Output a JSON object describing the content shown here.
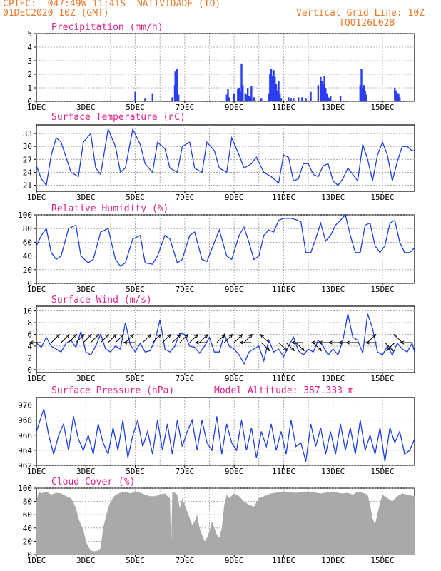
{
  "header": {
    "line1_left": "CPTEC:  047:49W-11:41S  NATIVIDADE (TO)",
    "line2_left": "01DEC2020 10Z (GMT)",
    "line1_right": "Vertical Grid Line: 10Z",
    "line2_right": "TQ0126L028",
    "model_altitude": "Model Altitude: 387.333 m"
  },
  "colors": {
    "header": "#e8782a",
    "panel_title": "#e0218a",
    "line": "#1f3fe0",
    "bar": "#2b3df2",
    "cloud": "#a9a9a9",
    "grid": "#9a9a9a",
    "wind_arrow": "#000000"
  },
  "chart_data": [
    {
      "id": "precip",
      "type": "bar",
      "title": "Precipitation (mm/h)",
      "ylim": [
        0,
        5
      ],
      "yticks": [
        0,
        1,
        2,
        3,
        4,
        5
      ],
      "xticks": [
        "1DEC",
        "3DEC",
        "5DEC",
        "7DEC",
        "9DEC",
        "11DEC",
        "13DEC",
        "15DEC"
      ],
      "x_unit": "day of December 2020",
      "xlim": [
        1,
        16.3
      ],
      "x": [
        5.0,
        5.4,
        5.7,
        6.5,
        6.6,
        6.62,
        6.68,
        6.7,
        6.75,
        8.7,
        8.75,
        8.8,
        9.0,
        9.15,
        9.2,
        9.25,
        9.3,
        9.35,
        9.45,
        9.5,
        9.55,
        9.6,
        9.65,
        9.7,
        9.8,
        10.1,
        10.4,
        10.45,
        10.5,
        10.55,
        10.6,
        10.65,
        10.7,
        10.75,
        10.8,
        10.85,
        10.9,
        11.2,
        11.3,
        11.4,
        11.6,
        11.75,
        11.9,
        12.1,
        12.4,
        12.5,
        12.55,
        12.6,
        12.65,
        12.7,
        12.75,
        12.8,
        12.85,
        12.9,
        13.3,
        14.1,
        14.15,
        14.2,
        14.25,
        14.3,
        14.35,
        15.5,
        15.55,
        15.6,
        15.65,
        15.7
      ],
      "values": [
        0.7,
        0.2,
        0.6,
        0.3,
        1.2,
        2.2,
        2.4,
        1.8,
        0.5,
        0.5,
        0.9,
        0.3,
        0.6,
        0.9,
        1.0,
        0.7,
        2.8,
        1.2,
        0.6,
        0.5,
        1.0,
        0.4,
        0.3,
        1.1,
        0.3,
        0.2,
        0.6,
        2.0,
        2.4,
        1.9,
        2.3,
        1.8,
        1.3,
        0.8,
        1.5,
        0.6,
        0.2,
        0.3,
        0.2,
        0.2,
        0.3,
        0.3,
        0.2,
        0.7,
        1.2,
        1.8,
        1.5,
        1.3,
        1.9,
        1.0,
        0.6,
        0.3,
        0.2,
        0.4,
        0.4,
        1.2,
        2.4,
        1.0,
        1.2,
        0.8,
        0.5,
        1.0,
        0.8,
        0.6,
        0.6,
        0.3
      ]
    },
    {
      "id": "temp",
      "type": "line",
      "title": "Surface Temperature (nC)",
      "ylim": [
        19.6,
        35
      ],
      "yticks": [
        21,
        24,
        27,
        30,
        33
      ],
      "xticks": [
        "1DEC",
        "3DEC",
        "5DEC",
        "7DEC",
        "9DEC",
        "11DEC",
        "13DEC",
        "15DEC"
      ],
      "x_unit": "day of December 2020",
      "xlim": [
        1,
        16.3
      ],
      "x": [
        1.0,
        1.2,
        1.4,
        1.6,
        1.8,
        2.0,
        2.4,
        2.7,
        2.9,
        3.2,
        3.4,
        3.6,
        3.9,
        4.2,
        4.4,
        4.6,
        4.9,
        5.2,
        5.4,
        5.7,
        5.9,
        6.2,
        6.4,
        6.7,
        6.9,
        7.2,
        7.4,
        7.7,
        7.9,
        8.2,
        8.4,
        8.7,
        8.9,
        9.2,
        9.4,
        9.7,
        9.9,
        10.2,
        10.5,
        10.8,
        11.0,
        11.2,
        11.4,
        11.6,
        11.8,
        12.0,
        12.2,
        12.4,
        12.6,
        12.8,
        13.0,
        13.2,
        13.4,
        13.6,
        13.8,
        14.0,
        14.2,
        14.4,
        14.6,
        14.8,
        15.0,
        15.2,
        15.4,
        15.6,
        15.8,
        16.0,
        16.2,
        16.3
      ],
      "values": [
        25.5,
        22.5,
        21.0,
        28.0,
        32.0,
        31.0,
        24.0,
        23.0,
        31.0,
        33.0,
        25.0,
        23.5,
        34.0,
        30.0,
        24.0,
        25.0,
        34.0,
        30.5,
        26.0,
        24.0,
        31.0,
        29.5,
        25.0,
        24.0,
        30.0,
        31.0,
        25.0,
        24.0,
        31.0,
        29.0,
        25.0,
        24.0,
        32.0,
        28.0,
        25.0,
        26.0,
        27.5,
        24.0,
        23.0,
        21.5,
        28.0,
        27.5,
        22.0,
        22.5,
        26.0,
        26.0,
        23.5,
        23.0,
        25.5,
        26.0,
        22.0,
        21.0,
        22.5,
        25.0,
        23.5,
        22.0,
        30.5,
        27.0,
        22.0,
        28.0,
        31.0,
        28.0,
        22.0,
        26.5,
        30.0,
        30.0,
        29.0,
        29.0
      ]
    },
    {
      "id": "rh",
      "type": "line",
      "title": "Relative Humidity (%)",
      "ylim": [
        0,
        100
      ],
      "yticks": [
        0,
        20,
        40,
        60,
        80,
        100
      ],
      "xticks": [
        "1DEC",
        "3DEC",
        "5DEC",
        "7DEC",
        "9DEC",
        "11DEC",
        "13DEC",
        "15DEC"
      ],
      "x_unit": "day of December 2020",
      "xlim": [
        1,
        16.3
      ],
      "x": [
        1.0,
        1.2,
        1.4,
        1.6,
        1.8,
        2.0,
        2.3,
        2.6,
        2.8,
        3.1,
        3.3,
        3.6,
        3.9,
        4.2,
        4.4,
        4.6,
        4.9,
        5.2,
        5.4,
        5.7,
        5.9,
        6.2,
        6.4,
        6.7,
        6.9,
        7.2,
        7.4,
        7.7,
        7.9,
        8.2,
        8.4,
        8.7,
        8.9,
        9.2,
        9.4,
        9.6,
        9.8,
        10.0,
        10.2,
        10.4,
        10.6,
        10.8,
        11.0,
        11.3,
        11.5,
        11.7,
        11.9,
        12.1,
        12.3,
        12.5,
        12.7,
        12.9,
        13.1,
        13.3,
        13.5,
        13.7,
        13.9,
        14.1,
        14.3,
        14.5,
        14.7,
        14.9,
        15.1,
        15.3,
        15.5,
        15.7,
        15.9,
        16.1,
        16.3
      ],
      "values": [
        55,
        70,
        80,
        45,
        35,
        40,
        80,
        85,
        40,
        30,
        35,
        75,
        80,
        35,
        25,
        30,
        65,
        70,
        30,
        28,
        40,
        70,
        65,
        30,
        35,
        70,
        75,
        35,
        32,
        60,
        78,
        40,
        35,
        70,
        82,
        60,
        35,
        40,
        70,
        78,
        75,
        92,
        95,
        95,
        93,
        90,
        45,
        45,
        65,
        88,
        62,
        70,
        85,
        92,
        100,
        70,
        45,
        45,
        85,
        88,
        55,
        45,
        55,
        88,
        92,
        60,
        45,
        45,
        52
      ]
    },
    {
      "id": "wind",
      "type": "line",
      "title": "Surface Wind (m/s)",
      "ylim": [
        -0.5,
        10.8
      ],
      "yticks": [
        0,
        2,
        4,
        6,
        8,
        10
      ],
      "xticks": [
        "1DEC",
        "3DEC",
        "5DEC",
        "7DEC",
        "9DEC",
        "11DEC",
        "13DEC",
        "15DEC"
      ],
      "x_unit": "day of December 2020",
      "xlim": [
        1,
        16.3
      ],
      "x": [
        1.0,
        1.2,
        1.4,
        1.6,
        1.8,
        2.0,
        2.2,
        2.4,
        2.6,
        2.8,
        3.0,
        3.2,
        3.4,
        3.6,
        3.8,
        4.0,
        4.2,
        4.4,
        4.6,
        4.8,
        5.0,
        5.2,
        5.4,
        5.6,
        5.8,
        6.0,
        6.2,
        6.4,
        6.6,
        6.8,
        7.0,
        7.2,
        7.4,
        7.6,
        7.8,
        8.0,
        8.2,
        8.4,
        8.6,
        8.8,
        9.0,
        9.2,
        9.4,
        9.6,
        9.8,
        10.0,
        10.2,
        10.4,
        10.6,
        10.8,
        11.0,
        11.2,
        11.4,
        11.6,
        11.8,
        12.0,
        12.2,
        12.4,
        12.6,
        12.8,
        13.0,
        13.2,
        13.4,
        13.6,
        13.8,
        14.0,
        14.2,
        14.4,
        14.6,
        14.8,
        15.0,
        15.2,
        15.4,
        15.6,
        15.8,
        16.0,
        16.2,
        16.3
      ],
      "values": [
        4.5,
        3.8,
        5.5,
        4.0,
        3.5,
        3.0,
        4.5,
        5.0,
        3.8,
        6.5,
        3.0,
        2.5,
        4.0,
        6.0,
        3.5,
        3.0,
        4.0,
        3.5,
        8.0,
        4.2,
        3.0,
        4.5,
        3.0,
        3.2,
        5.0,
        8.5,
        3.5,
        3.0,
        4.0,
        6.2,
        6.0,
        4.0,
        3.8,
        2.8,
        4.0,
        5.5,
        3.0,
        3.0,
        6.0,
        4.0,
        3.5,
        2.5,
        1.0,
        3.0,
        3.5,
        4.0,
        1.5,
        5.0,
        3.0,
        3.5,
        2.2,
        4.0,
        5.5,
        3.2,
        2.5,
        3.5,
        3.0,
        5.0,
        4.0,
        2.5,
        3.5,
        2.5,
        5.0,
        9.5,
        5.5,
        5.0,
        2.8,
        9.5,
        7.0,
        3.0,
        2.5,
        4.0,
        2.5,
        4.5,
        3.5,
        3.0,
        4.5,
        3.0
      ],
      "arrows_x": [
        1.2,
        1.6,
        2.0,
        2.3,
        2.6,
        2.9,
        3.2,
        3.6,
        3.9,
        4.2,
        4.6,
        5.0,
        5.3,
        5.7,
        6.1,
        6.5,
        6.8,
        7.2,
        7.6,
        7.9,
        8.3,
        8.6,
        9.0,
        9.4,
        9.7,
        10.1,
        10.4,
        10.8,
        11.1,
        11.5,
        11.8,
        12.2,
        12.6,
        12.9,
        13.3,
        13.7,
        14.0,
        14.4,
        14.8,
        15.1,
        15.5,
        15.8,
        16.2
      ],
      "arrows_u": [
        -2,
        1,
        1,
        1,
        1,
        1,
        1,
        1,
        1,
        1,
        1,
        -2,
        1,
        1,
        1,
        1,
        1,
        1,
        1,
        -1,
        1,
        1,
        1,
        1,
        -2,
        1,
        -1,
        1,
        1,
        1,
        -2,
        1,
        -2,
        -2,
        -2,
        -2,
        -2,
        1,
        -2,
        1,
        -1,
        -1,
        -1
      ],
      "arrows_v": [
        0,
        1,
        1,
        1,
        1,
        1,
        1,
        1,
        1,
        1,
        1,
        0,
        1,
        1,
        1,
        1,
        1,
        1,
        1,
        0,
        1,
        1,
        1,
        1,
        0,
        -1,
        1,
        -1,
        -1,
        -1,
        0,
        -1,
        0,
        0,
        0,
        0,
        0,
        1,
        0,
        -1,
        -1,
        1,
        0
      ]
    },
    {
      "id": "pressure",
      "type": "line",
      "title": "Surface Pressure (hPa)",
      "ylim": [
        962,
        971
      ],
      "yticks": [
        962,
        964,
        966,
        968,
        970
      ],
      "xticks": [
        "1DEC",
        "3DEC",
        "5DEC",
        "7DEC",
        "9DEC",
        "11DEC",
        "13DEC",
        "15DEC"
      ],
      "x_unit": "day of December 2020",
      "xlim": [
        1,
        16.3
      ],
      "x": [
        1.0,
        1.1,
        1.3,
        1.5,
        1.7,
        1.9,
        2.1,
        2.3,
        2.5,
        2.7,
        2.9,
        3.1,
        3.3,
        3.5,
        3.7,
        3.9,
        4.1,
        4.3,
        4.5,
        4.7,
        4.9,
        5.1,
        5.3,
        5.5,
        5.7,
        5.9,
        6.1,
        6.3,
        6.5,
        6.7,
        6.9,
        7.1,
        7.3,
        7.5,
        7.7,
        7.9,
        8.1,
        8.3,
        8.5,
        8.7,
        8.9,
        9.1,
        9.3,
        9.5,
        9.7,
        9.9,
        10.1,
        10.3,
        10.5,
        10.7,
        10.9,
        11.1,
        11.3,
        11.5,
        11.7,
        11.9,
        12.1,
        12.3,
        12.5,
        12.7,
        12.9,
        13.1,
        13.3,
        13.5,
        13.7,
        13.9,
        14.1,
        14.3,
        14.5,
        14.7,
        14.9,
        15.1,
        15.3,
        15.5,
        15.7,
        15.9,
        16.1,
        16.3
      ],
      "values": [
        966.5,
        967.5,
        969.5,
        966.0,
        963.5,
        966.0,
        967.5,
        964.0,
        968.5,
        965.5,
        964.0,
        966.0,
        963.5,
        967.5,
        965.0,
        963.5,
        967.0,
        964.0,
        968.0,
        963.0,
        966.0,
        968.0,
        964.5,
        966.5,
        963.5,
        968.0,
        964.0,
        967.5,
        963.5,
        968.0,
        964.5,
        966.5,
        968.0,
        964.0,
        968.0,
        965.0,
        964.0,
        968.5,
        963.5,
        967.5,
        965.0,
        964.0,
        968.0,
        964.0,
        967.0,
        963.0,
        966.5,
        964.5,
        967.5,
        964.0,
        966.5,
        963.5,
        968.0,
        964.5,
        965.0,
        962.5,
        967.5,
        964.5,
        967.0,
        963.5,
        966.5,
        963.5,
        967.5,
        964.0,
        967.0,
        963.5,
        968.0,
        964.0,
        966.0,
        963.5,
        967.0,
        962.5,
        967.0,
        965.0,
        966.5,
        963.5,
        964.0,
        965.5
      ]
    },
    {
      "id": "cloud",
      "type": "area",
      "title": "Cloud Cover (%)",
      "ylim": [
        0,
        100
      ],
      "yticks": [
        0,
        20,
        40,
        60,
        80,
        100
      ],
      "xticks": [
        "1DEC",
        "3DEC",
        "5DEC",
        "7DEC",
        "9DEC",
        "11DEC",
        "13DEC",
        "15DEC"
      ],
      "x_unit": "day of December 2020",
      "xlim": [
        1,
        16.3
      ],
      "x": [
        1.0,
        1.1,
        1.2,
        1.4,
        1.6,
        1.8,
        2.0,
        2.2,
        2.4,
        2.5,
        2.6,
        2.7,
        2.8,
        2.9,
        3.0,
        3.1,
        3.2,
        3.3,
        3.4,
        3.5,
        3.6,
        3.7,
        3.8,
        3.9,
        4.0,
        4.2,
        4.4,
        4.6,
        4.8,
        5.0,
        5.2,
        5.4,
        5.6,
        5.8,
        6.0,
        6.2,
        6.3,
        6.4,
        6.45,
        6.5,
        6.6,
        6.7,
        6.8,
        6.9,
        7.0,
        7.1,
        7.2,
        7.3,
        7.4,
        7.5,
        7.6,
        7.7,
        7.8,
        7.9,
        8.0,
        8.1,
        8.2,
        8.3,
        8.4,
        8.5,
        8.6,
        8.7,
        8.8,
        9.0,
        9.2,
        9.4,
        9.6,
        9.8,
        10.0,
        10.5,
        11.0,
        11.5,
        12.0,
        12.5,
        13.0,
        13.2,
        13.4,
        13.6,
        13.8,
        14.0,
        14.2,
        14.4,
        14.5,
        14.6,
        14.7,
        14.8,
        14.9,
        15.0,
        15.2,
        15.4,
        15.6,
        15.8,
        16.0,
        16.3
      ],
      "values": [
        80,
        95,
        92,
        95,
        90,
        93,
        92,
        88,
        85,
        78,
        70,
        55,
        45,
        38,
        20,
        12,
        6,
        5,
        5,
        6,
        10,
        40,
        55,
        70,
        80,
        90,
        93,
        95,
        92,
        95,
        93,
        90,
        88,
        88,
        90,
        92,
        88,
        85,
        5,
        95,
        93,
        90,
        70,
        85,
        75,
        65,
        55,
        45,
        50,
        60,
        40,
        30,
        20,
        25,
        35,
        50,
        40,
        30,
        25,
        40,
        75,
        90,
        85,
        92,
        88,
        80,
        75,
        72,
        85,
        92,
        95,
        93,
        95,
        92,
        95,
        93,
        92,
        93,
        90,
        95,
        93,
        90,
        75,
        55,
        45,
        62,
        78,
        90,
        85,
        80,
        88,
        92,
        90,
        88
      ]
    }
  ]
}
